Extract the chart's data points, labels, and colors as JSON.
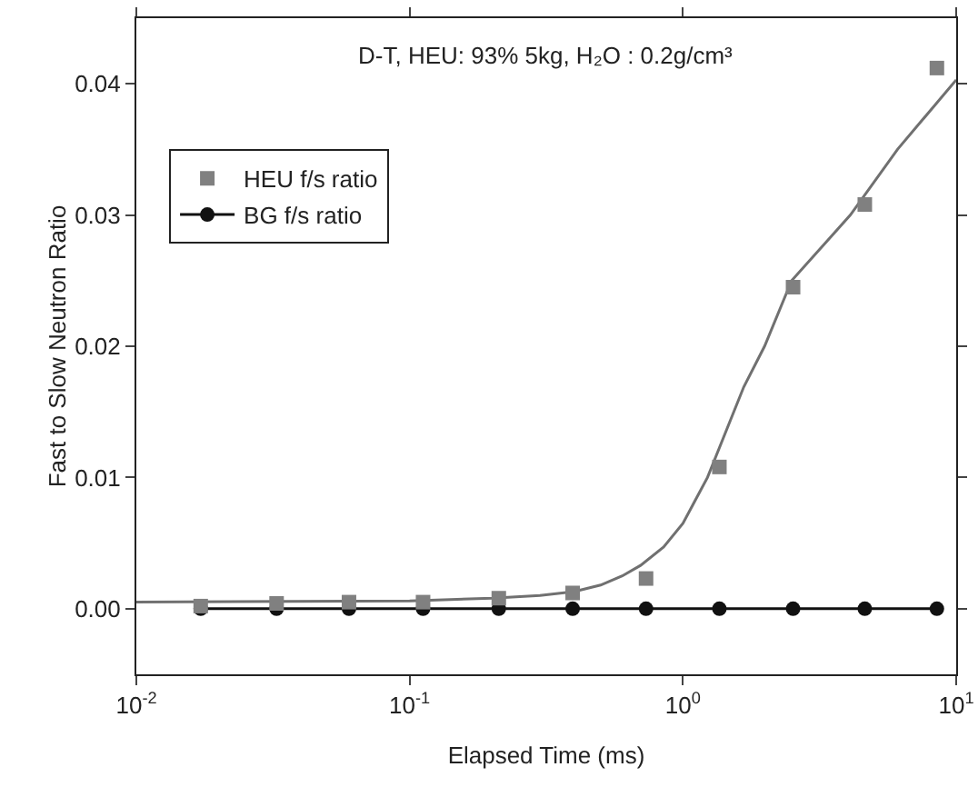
{
  "chart_data": {
    "type": "scatter",
    "xlabel": "Elapsed Time (ms)",
    "ylabel": "Fast to Slow Neutron Ratio",
    "annotations": [
      "D-T, HEU: 93% 5kg, H₂O : 0.2g/cm³"
    ],
    "x": [
      0.0172,
      0.0326,
      0.06,
      0.112,
      0.212,
      0.395,
      0.733,
      1.36,
      2.53,
      4.63,
      8.5
    ],
    "series": [
      {
        "name": "HEU f/s ratio",
        "marker": "square",
        "color": "#808080",
        "values": [
          0.0002,
          0.0004,
          0.0005,
          0.0005,
          0.0008,
          0.0012,
          0.0023,
          0.0108,
          0.0245,
          0.0308,
          0.0412
        ]
      },
      {
        "name": "BG f/s ratio",
        "type": "line",
        "marker": "circle",
        "color": "#111111",
        "values": [
          0,
          0,
          0,
          0,
          0,
          0,
          0,
          0,
          0,
          0,
          0
        ]
      },
      {
        "type": "line",
        "marker": "none",
        "color": "#707070",
        "x": [
          0.01,
          0.1,
          0.2,
          0.3,
          0.4,
          0.5,
          0.6,
          0.7,
          0.85,
          1.0,
          1.23,
          1.67,
          1.99,
          2.5,
          4.1,
          6.1,
          10
        ],
        "values": [
          0.0005,
          0.0006,
          0.0008,
          0.001,
          0.0013,
          0.0018,
          0.0025,
          0.0033,
          0.0047,
          0.0065,
          0.01,
          0.0169,
          0.02,
          0.025,
          0.03,
          0.035,
          0.0403
        ]
      }
    ],
    "log": "x",
    "xlim": [
      0.01,
      10
    ],
    "xticks": [
      {
        "value": 0.01,
        "label": "10$^{-2}$"
      },
      {
        "value": 0.1,
        "label": "10$^{-1}$"
      },
      {
        "value": 1,
        "label": "10$^{0}$"
      },
      {
        "value": 10,
        "label": "10$^{1}$"
      }
    ],
    "ylim": [
      -0.005,
      0.045
    ],
    "yticks": [
      {
        "value": 0,
        "label": "0.00"
      },
      0.01,
      0.02,
      0.03,
      0.04
    ],
    "grid": false,
    "legend": "top left"
  }
}
